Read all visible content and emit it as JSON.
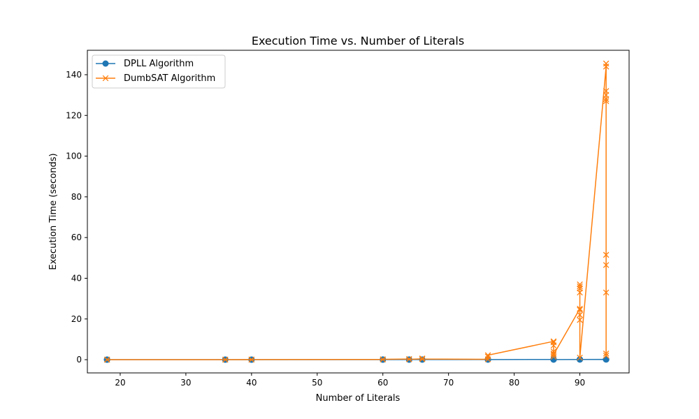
{
  "chart_data": {
    "type": "line",
    "title": "Execution Time vs. Number of Literals",
    "xlabel": "Number of Literals",
    "ylabel": "Execution Time (seconds)",
    "xlim": [
      15,
      97.5
    ],
    "ylim": [
      -6.5,
      152
    ],
    "xticks": [
      20,
      30,
      40,
      50,
      60,
      70,
      80,
      90
    ],
    "yticks": [
      0,
      20,
      40,
      60,
      80,
      100,
      120,
      140
    ],
    "grid": false,
    "legend_position": "top-left",
    "series": [
      {
        "name": "DPLL Algorithm",
        "color": "#1f77b4",
        "marker": "circle",
        "points": [
          [
            18,
            0.01
          ],
          [
            18,
            0.02
          ],
          [
            18,
            0.01
          ],
          [
            18,
            0.02
          ],
          [
            36,
            0.02
          ],
          [
            36,
            0.03
          ],
          [
            36,
            0.02
          ],
          [
            40,
            0.03
          ],
          [
            40,
            0.02
          ],
          [
            40,
            0.03
          ],
          [
            60,
            0.04
          ],
          [
            60,
            0.05
          ],
          [
            60,
            0.04
          ],
          [
            64,
            0.05
          ],
          [
            64,
            0.05
          ],
          [
            64,
            0.06
          ],
          [
            66,
            0.06
          ],
          [
            66,
            0.05
          ],
          [
            76,
            0.07
          ],
          [
            76,
            0.08
          ],
          [
            76,
            0.07
          ],
          [
            86,
            0.09
          ],
          [
            86,
            0.1
          ],
          [
            86,
            0.08
          ],
          [
            90,
            0.1
          ],
          [
            90,
            0.12
          ],
          [
            90,
            0.11
          ],
          [
            94,
            0.13
          ],
          [
            94,
            0.12
          ],
          [
            94,
            0.14
          ],
          [
            94,
            0.13
          ]
        ]
      },
      {
        "name": "DumbSAT Algorithm",
        "color": "#ff7f0e",
        "marker": "x",
        "points": [
          [
            18,
            0.01
          ],
          [
            18,
            0.01
          ],
          [
            18,
            0.02
          ],
          [
            36,
            0.02
          ],
          [
            36,
            0.03
          ],
          [
            40,
            0.05
          ],
          [
            40,
            0.04
          ],
          [
            60,
            0.1
          ],
          [
            60,
            0.2
          ],
          [
            64,
            0.3
          ],
          [
            64,
            0.2
          ],
          [
            66,
            0.4
          ],
          [
            66,
            0.6
          ],
          [
            66,
            0.3
          ],
          [
            76,
            0.2
          ],
          [
            76,
            1.5
          ],
          [
            76,
            2.2
          ],
          [
            86,
            9.0
          ],
          [
            86,
            8.5
          ],
          [
            86,
            7.0
          ],
          [
            86,
            4.0
          ],
          [
            86,
            3.0
          ],
          [
            86,
            1.5
          ],
          [
            86,
            2.5
          ],
          [
            90,
            25.0
          ],
          [
            90,
            19.5
          ],
          [
            90,
            22.0
          ],
          [
            90,
            24.5
          ],
          [
            90,
            33.0
          ],
          [
            90,
            35.0
          ],
          [
            90,
            37.0
          ],
          [
            90,
            36.0
          ],
          [
            90,
            1.0
          ],
          [
            94,
            144.0
          ],
          [
            94,
            145.5
          ],
          [
            94,
            132.0
          ],
          [
            94,
            130.0
          ],
          [
            94,
            128.0
          ],
          [
            94,
            127.0
          ],
          [
            94,
            51.5
          ],
          [
            94,
            46.5
          ],
          [
            94,
            33.0
          ],
          [
            94,
            3.0
          ],
          [
            94,
            2.0
          ]
        ]
      }
    ]
  }
}
